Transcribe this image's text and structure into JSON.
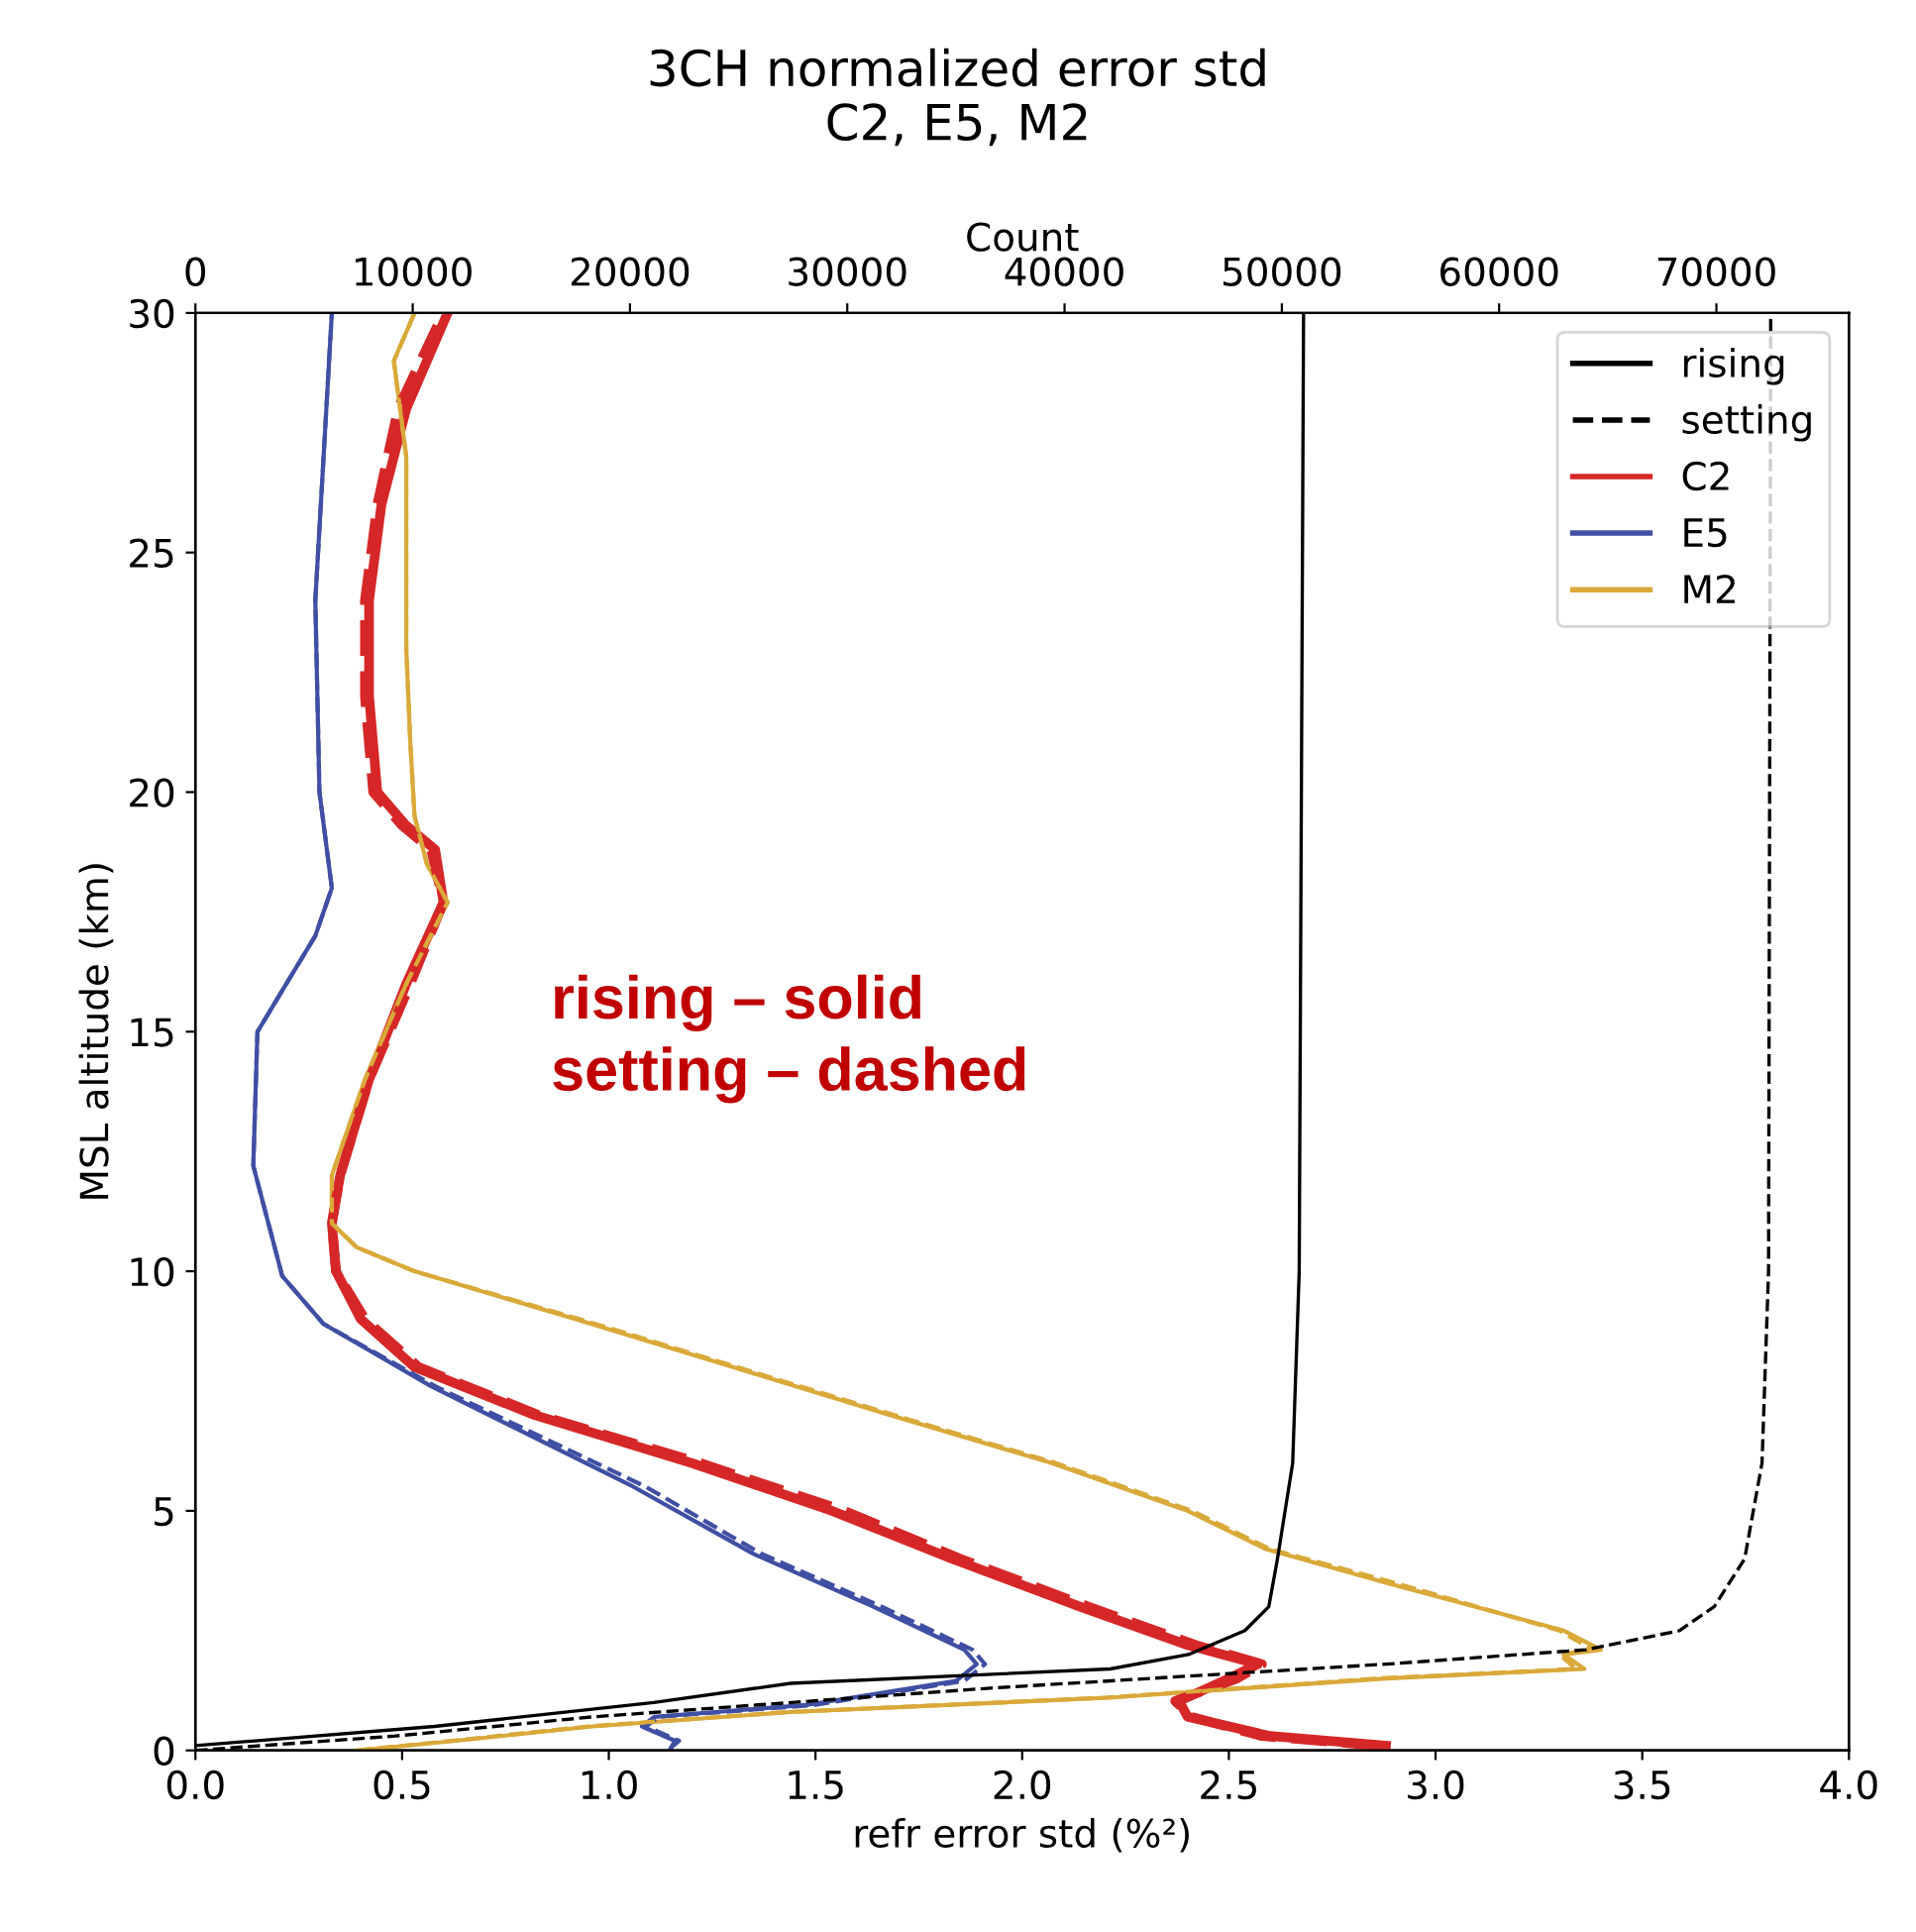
{
  "chart_data": {
    "type": "line",
    "title": "3CH normalized error std",
    "subtitle": "C2, E5, M2",
    "xlabel": "refr error std (%²)",
    "ylabel": "MSL altitude (km)",
    "x2label": "Count",
    "xlim": [
      0,
      4.0
    ],
    "xticks": [
      {
        "value": 0,
        "label": "0.0"
      },
      {
        "value": 0.5,
        "label": "0.5"
      },
      {
        "value": 1,
        "label": "1.0"
      },
      {
        "value": 1.5,
        "label": "1.5"
      },
      {
        "value": 2,
        "label": "2.0"
      },
      {
        "value": 2.5,
        "label": "2.5"
      },
      {
        "value": 3,
        "label": "3.0"
      },
      {
        "value": 3.5,
        "label": "3.5"
      },
      {
        "value": 4,
        "label": "4.0"
      }
    ],
    "ylim": [
      0,
      30
    ],
    "yticks": [
      0,
      5,
      10,
      15,
      20,
      25,
      30
    ],
    "x2lim": [
      0,
      76100
    ],
    "x2ticks": [
      0,
      10000,
      20000,
      30000,
      40000,
      50000,
      60000,
      70000
    ],
    "grid": false,
    "legend": "top right",
    "annotations": [
      "rising – solid",
      "setting – dashed"
    ],
    "series": [
      {
        "name": "rising",
        "color": "#000000",
        "axis": "x2",
        "line_style": "solid",
        "x": [
          0,
          11000,
          21100,
          27400,
          42100,
          45700,
          48300,
          49400,
          49800,
          50500,
          50800,
          51000
        ],
        "values": [
          0.1,
          0.5,
          1.0,
          1.4,
          1.7,
          2.0,
          2.5,
          3.0,
          4.0,
          6.0,
          10.0,
          30.0
        ]
      },
      {
        "name": "setting",
        "color": "#000000",
        "axis": "x2",
        "line_style": "dashed",
        "x": [
          0,
          9200,
          18300,
          36600,
          54800,
          64000,
          68300,
          69900,
          71300,
          72100,
          72400,
          72500
        ],
        "values": [
          0.0,
          0.3,
          0.7,
          1.3,
          1.8,
          2.1,
          2.5,
          3.0,
          4.0,
          6.0,
          10.0,
          30.0
        ]
      },
      {
        "name": "C2",
        "color": "#d62728",
        "line_style": "solid",
        "x": [
          2.88,
          2.6,
          2.4,
          2.38,
          2.5,
          2.57,
          2.4,
          2.14,
          1.83,
          1.54,
          1.2,
          0.82,
          0.53,
          0.4,
          0.34,
          0.33,
          0.35,
          0.42,
          0.51,
          0.6,
          0.58,
          0.51,
          0.44,
          0.42,
          0.42,
          0.45,
          0.51,
          0.61
        ],
        "values": [
          0.1,
          0.3,
          0.7,
          1.03,
          1.5,
          1.8,
          2.2,
          3.0,
          4.0,
          5.0,
          6.0,
          7.0,
          8.0,
          9.0,
          10.0,
          11.0,
          12.0,
          14.0,
          16.0,
          17.7,
          18.8,
          19.3,
          20.0,
          22.0,
          24.0,
          26.0,
          28.0,
          30.0
        ]
      },
      {
        "name": "E5",
        "color": "#3f4fa3",
        "line_style": "solid",
        "x": [
          1.15,
          1.16,
          1.08,
          1.11,
          1.48,
          1.84,
          1.89,
          1.86,
          1.64,
          1.35,
          1.06,
          0.57,
          0.31,
          0.21,
          0.14,
          0.15,
          0.22,
          0.29,
          0.33,
          0.3,
          0.29,
          0.31,
          0.33
        ],
        "values": [
          0.05,
          0.2,
          0.5,
          0.7,
          0.95,
          1.45,
          1.8,
          2.1,
          3.0,
          4.1,
          5.5,
          7.6,
          8.9,
          9.9,
          12.2,
          15.0,
          16.0,
          17.0,
          18.0,
          20.0,
          24.0,
          27.0,
          30.0
        ]
      },
      {
        "name": "M2",
        "color": "#d9a93a",
        "line_style": "solid",
        "x": [
          0.39,
          0.63,
          0.96,
          1.44,
          2.21,
          2.88,
          3.36,
          3.31,
          3.4,
          3.31,
          2.88,
          2.59,
          2.4,
          2.07,
          1.68,
          1.3,
          0.92,
          0.53,
          0.39,
          0.33,
          0.33,
          0.41,
          0.51,
          0.61,
          0.56,
          0.53,
          0.52,
          0.51,
          0.51,
          0.51,
          0.48,
          0.53
        ],
        "values": [
          0.0,
          0.2,
          0.5,
          0.8,
          1.1,
          1.5,
          1.7,
          2.0,
          2.1,
          2.5,
          3.5,
          4.2,
          5.0,
          6.0,
          7.0,
          8.0,
          9.0,
          10.0,
          10.5,
          11.0,
          12.0,
          14.0,
          16.0,
          17.7,
          18.5,
          19.5,
          21.0,
          23.0,
          25.0,
          27.0,
          29.0,
          30.0
        ]
      },
      {
        "color": "#d62728",
        "line_style": "dashed",
        "x": [
          2.86,
          2.58,
          2.41,
          2.37,
          2.52,
          2.58,
          2.42,
          2.16,
          1.85,
          1.57,
          1.22,
          0.83,
          0.54,
          0.41,
          0.34,
          0.33,
          0.35,
          0.42,
          0.52,
          0.6,
          0.57,
          0.5,
          0.43,
          0.41,
          0.41,
          0.44,
          0.49,
          0.6
        ],
        "values": [
          0.1,
          0.3,
          0.7,
          1.03,
          1.5,
          1.8,
          2.2,
          3.0,
          4.0,
          5.0,
          6.0,
          7.0,
          8.0,
          9.0,
          10.0,
          11.0,
          12.0,
          14.0,
          16.0,
          17.7,
          18.8,
          19.3,
          20.0,
          22.0,
          24.0,
          26.0,
          28.0,
          30.0
        ]
      },
      {
        "color": "#3f4fa3",
        "line_style": "dashed",
        "x": [
          1.15,
          1.17,
          1.09,
          1.12,
          1.5,
          1.86,
          1.91,
          1.88,
          1.66,
          1.37,
          1.09,
          0.58,
          0.31,
          0.21,
          0.14,
          0.15,
          0.22,
          0.29,
          0.33,
          0.3,
          0.29,
          0.31,
          0.33
        ],
        "values": [
          0.05,
          0.2,
          0.5,
          0.7,
          0.95,
          1.45,
          1.8,
          2.1,
          3.0,
          4.1,
          5.5,
          7.6,
          8.9,
          9.9,
          12.2,
          15.0,
          16.0,
          17.0,
          18.0,
          20.0,
          24.0,
          27.0,
          30.0
        ]
      },
      {
        "color": "#d9a93a",
        "line_style": "dashed",
        "x": [
          0.39,
          0.62,
          0.95,
          1.43,
          2.2,
          2.86,
          3.34,
          3.3,
          3.38,
          3.3,
          2.9,
          2.6,
          2.41,
          2.08,
          1.69,
          1.31,
          0.93,
          0.53,
          0.39,
          0.33,
          0.33,
          0.41,
          0.51,
          0.61,
          0.56,
          0.53,
          0.52,
          0.51,
          0.51,
          0.51,
          0.48,
          0.53
        ],
        "values": [
          0.0,
          0.2,
          0.5,
          0.8,
          1.1,
          1.5,
          1.7,
          2.0,
          2.1,
          2.5,
          3.5,
          4.2,
          5.0,
          6.0,
          7.0,
          8.0,
          9.0,
          10.0,
          10.5,
          11.0,
          12.0,
          14.0,
          16.0,
          17.7,
          18.5,
          19.5,
          21.0,
          23.0,
          25.0,
          27.0,
          29.0,
          30.0
        ]
      }
    ]
  }
}
